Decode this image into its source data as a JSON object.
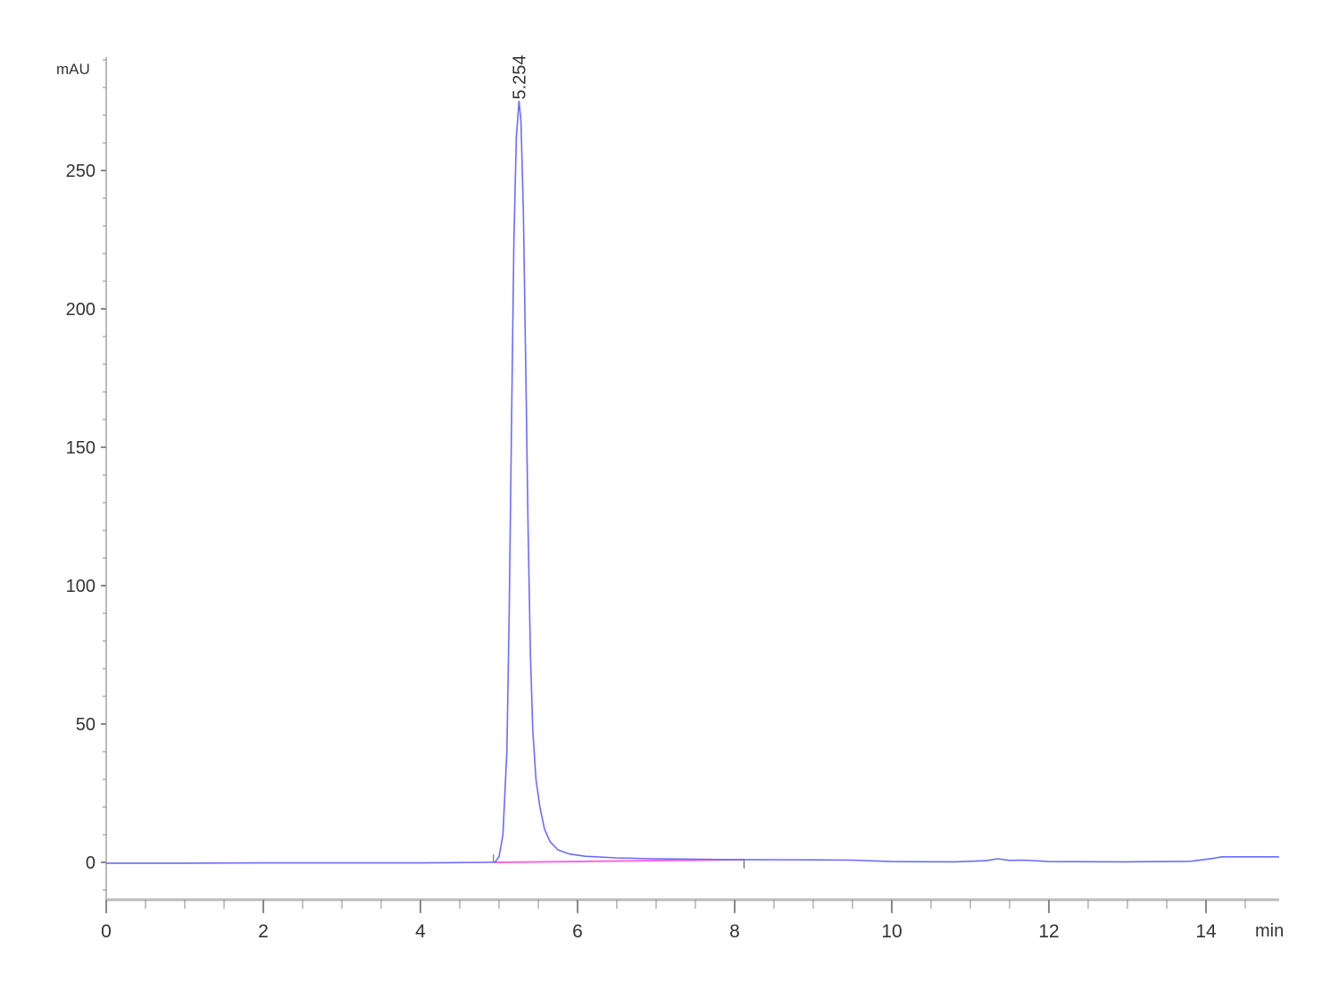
{
  "chart_data": {
    "type": "line",
    "title": "",
    "xlabel": "min",
    "ylabel": "mAU",
    "xlim": [
      0,
      14.93
    ],
    "ylim": [
      -13.5,
      291
    ],
    "x_ticks": [
      0,
      2,
      4,
      6,
      8,
      10,
      12,
      14
    ],
    "y_ticks": [
      0,
      50,
      100,
      150,
      200,
      250
    ],
    "x_minor_step": 0.5,
    "y_minor_step": 10,
    "grid": false,
    "colors": {
      "signal": "#6b6bff",
      "baseline": "#ff66dd",
      "axis": "#bbbbbb",
      "text": "#333333"
    },
    "peak_labels": [
      {
        "x": 5.254,
        "y": 275,
        "label": "5.254"
      }
    ],
    "integration_baseline": {
      "start": [
        4.93,
        0
      ],
      "end": [
        8.12,
        1.0
      ]
    },
    "series": [
      {
        "points": [
          [
            0,
            -0.3
          ],
          [
            1,
            -0.3
          ],
          [
            2,
            -0.2
          ],
          [
            3,
            -0.2
          ],
          [
            4,
            -0.2
          ],
          [
            4.8,
            0
          ],
          [
            4.95,
            0.1
          ],
          [
            5.0,
            2
          ],
          [
            5.05,
            10
          ],
          [
            5.1,
            40
          ],
          [
            5.13,
            90
          ],
          [
            5.16,
            160
          ],
          [
            5.19,
            225
          ],
          [
            5.22,
            262
          ],
          [
            5.254,
            275
          ],
          [
            5.28,
            268
          ],
          [
            5.31,
            235
          ],
          [
            5.34,
            180
          ],
          [
            5.37,
            120
          ],
          [
            5.4,
            75
          ],
          [
            5.43,
            48
          ],
          [
            5.47,
            30
          ],
          [
            5.52,
            20
          ],
          [
            5.58,
            12
          ],
          [
            5.65,
            7.5
          ],
          [
            5.75,
            4.5
          ],
          [
            5.9,
            3
          ],
          [
            6.1,
            2.2
          ],
          [
            6.5,
            1.6
          ],
          [
            7,
            1.3
          ],
          [
            8,
            1.0
          ],
          [
            9,
            0.9
          ],
          [
            9.5,
            0.8
          ],
          [
            10,
            0.3
          ],
          [
            10.8,
            0.2
          ],
          [
            11.2,
            0.6
          ],
          [
            11.35,
            1.3
          ],
          [
            11.5,
            0.7
          ],
          [
            11.7,
            0.8
          ],
          [
            12,
            0.3
          ],
          [
            13,
            0.2
          ],
          [
            13.8,
            0.4
          ],
          [
            14.1,
            1.5
          ],
          [
            14.2,
            2.0
          ],
          [
            14.5,
            2.0
          ],
          [
            14.93,
            2.0
          ]
        ]
      }
    ]
  }
}
